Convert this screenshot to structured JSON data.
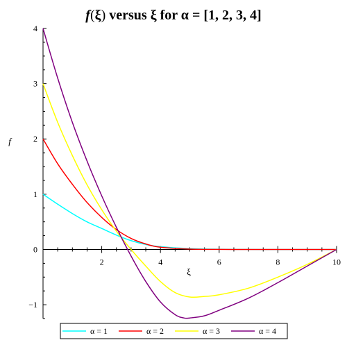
{
  "chart_data": {
    "type": "line",
    "title_parts": {
      "f": "f",
      "paren_open": "(",
      "xi": "ξ",
      "paren_close": ")",
      "middle": " versus ",
      "xi2": "ξ",
      "for": " for ",
      "alpha": "α",
      "tail": " = [1, 2, 3, 4]"
    },
    "xlabel": "ξ",
    "ylabel": "f",
    "xlim": [
      0,
      10
    ],
    "ylim": [
      -1.25,
      4
    ],
    "x_ticks": [
      2,
      4,
      6,
      8,
      10
    ],
    "y_ticks": [
      -1,
      0,
      1,
      2,
      3,
      4
    ],
    "grid": false,
    "legend_position": "bottom",
    "series": [
      {
        "name": "α = 1",
        "color": "#00ffff",
        "points": [
          [
            0,
            1.0
          ],
          [
            0.5,
            0.82
          ],
          [
            1.0,
            0.65
          ],
          [
            1.5,
            0.5
          ],
          [
            2.0,
            0.38
          ],
          [
            2.5,
            0.26
          ],
          [
            3.0,
            0.16
          ],
          [
            3.5,
            0.09
          ],
          [
            4.0,
            0.05
          ],
          [
            5.0,
            0.015
          ],
          [
            6.0,
            0.004
          ],
          [
            7.0,
            0.001
          ],
          [
            8.0,
            0.0
          ],
          [
            9.0,
            0.0
          ],
          [
            10.0,
            0.0
          ]
        ]
      },
      {
        "name": "α = 2",
        "color": "#ff0000",
        "points": [
          [
            0,
            2.0
          ],
          [
            0.5,
            1.55
          ],
          [
            1.0,
            1.18
          ],
          [
            1.5,
            0.85
          ],
          [
            2.0,
            0.58
          ],
          [
            2.5,
            0.36
          ],
          [
            3.0,
            0.2
          ],
          [
            3.5,
            0.1
          ],
          [
            4.0,
            0.04
          ],
          [
            5.0,
            0.008
          ],
          [
            6.0,
            0.001
          ],
          [
            7.0,
            0.0
          ],
          [
            8.0,
            0.0
          ],
          [
            9.0,
            0.0
          ],
          [
            10.0,
            0.0
          ]
        ]
      },
      {
        "name": "α = 3",
        "color": "#ffff00",
        "points": [
          [
            0,
            3.0
          ],
          [
            0.5,
            2.3
          ],
          [
            1.0,
            1.7
          ],
          [
            1.5,
            1.17
          ],
          [
            2.0,
            0.72
          ],
          [
            2.5,
            0.33
          ],
          [
            3.0,
            0.0
          ],
          [
            3.5,
            -0.3
          ],
          [
            4.0,
            -0.58
          ],
          [
            4.5,
            -0.78
          ],
          [
            5.0,
            -0.86
          ],
          [
            5.5,
            -0.85
          ],
          [
            6.0,
            -0.82
          ],
          [
            7.0,
            -0.7
          ],
          [
            8.0,
            -0.5
          ],
          [
            9.0,
            -0.27
          ],
          [
            10.0,
            0.0
          ]
        ]
      },
      {
        "name": "α = 4",
        "color": "#800080",
        "points": [
          [
            0,
            4.0
          ],
          [
            0.5,
            3.1
          ],
          [
            1.0,
            2.3
          ],
          [
            1.5,
            1.6
          ],
          [
            2.0,
            0.97
          ],
          [
            2.5,
            0.4
          ],
          [
            3.0,
            -0.12
          ],
          [
            3.5,
            -0.58
          ],
          [
            4.0,
            -0.95
          ],
          [
            4.5,
            -1.18
          ],
          [
            4.8,
            -1.24
          ],
          [
            5.0,
            -1.24
          ],
          [
            5.5,
            -1.2
          ],
          [
            6.0,
            -1.1
          ],
          [
            7.0,
            -0.88
          ],
          [
            8.0,
            -0.6
          ],
          [
            9.0,
            -0.3
          ],
          [
            10.0,
            0.0
          ]
        ]
      }
    ]
  }
}
